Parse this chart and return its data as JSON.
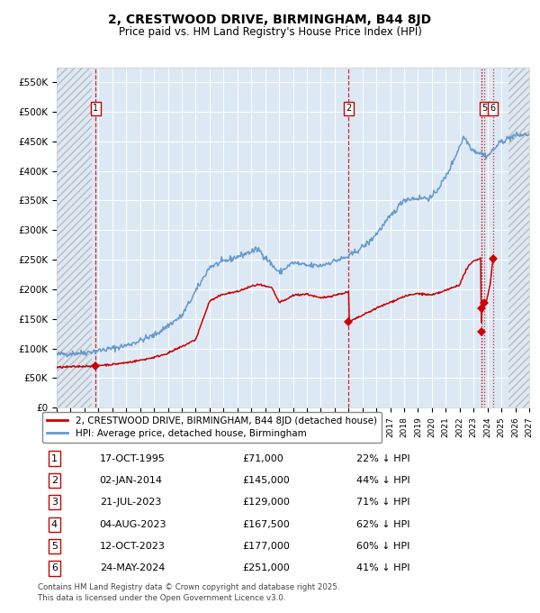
{
  "title": "2, CRESTWOOD DRIVE, BIRMINGHAM, B44 8JD",
  "subtitle": "Price paid vs. HM Land Registry's House Price Index (HPI)",
  "xlim": [
    1993.0,
    2027.0
  ],
  "ylim": [
    0,
    575000
  ],
  "yticks": [
    0,
    50000,
    100000,
    150000,
    200000,
    250000,
    300000,
    350000,
    400000,
    450000,
    500000,
    550000
  ],
  "ytick_labels": [
    "£0",
    "£50K",
    "£100K",
    "£150K",
    "£200K",
    "£250K",
    "£300K",
    "£350K",
    "£400K",
    "£450K",
    "£500K",
    "£550K"
  ],
  "xticks": [
    1993,
    1994,
    1995,
    1996,
    1997,
    1998,
    1999,
    2000,
    2001,
    2002,
    2003,
    2004,
    2005,
    2006,
    2007,
    2008,
    2009,
    2010,
    2011,
    2012,
    2013,
    2014,
    2015,
    2016,
    2017,
    2018,
    2019,
    2020,
    2021,
    2022,
    2023,
    2024,
    2025,
    2026,
    2027
  ],
  "background_color": "#dce9f5",
  "grid_color": "#ffffff",
  "red_line_color": "#cc0000",
  "blue_line_color": "#6699cc",
  "vline_color": "#cc0000",
  "hatch_left_end": 1995.5,
  "hatch_right_start": 2025.5,
  "purchases": [
    {
      "num": 1,
      "year": 1995.79,
      "price": 71000,
      "vline": "dashed",
      "show_label": true
    },
    {
      "num": 2,
      "year": 2014.01,
      "price": 145000,
      "vline": "dashed",
      "show_label": true
    },
    {
      "num": 3,
      "year": 2023.55,
      "price": 129000,
      "vline": "dotted",
      "show_label": false
    },
    {
      "num": 4,
      "year": 2023.59,
      "price": 167500,
      "vline": "dotted",
      "show_label": false
    },
    {
      "num": 5,
      "year": 2023.78,
      "price": 177000,
      "vline": "dotted",
      "show_label": true
    },
    {
      "num": 6,
      "year": 2024.39,
      "price": 251000,
      "vline": "dotted",
      "show_label": true
    }
  ],
  "legend_red_label": "2, CRESTWOOD DRIVE, BIRMINGHAM, B44 8JD (detached house)",
  "legend_blue_label": "HPI: Average price, detached house, Birmingham",
  "table_rows": [
    {
      "num": "1",
      "date": "17-OCT-1995",
      "price": "£71,000",
      "pct": "22% ↓ HPI"
    },
    {
      "num": "2",
      "date": "02-JAN-2014",
      "price": "£145,000",
      "pct": "44% ↓ HPI"
    },
    {
      "num": "3",
      "date": "21-JUL-2023",
      "price": "£129,000",
      "pct": "71% ↓ HPI"
    },
    {
      "num": "4",
      "date": "04-AUG-2023",
      "price": "£167,500",
      "pct": "62% ↓ HPI"
    },
    {
      "num": "5",
      "date": "12-OCT-2023",
      "price": "£177,000",
      "pct": "60% ↓ HPI"
    },
    {
      "num": "6",
      "date": "24-MAY-2024",
      "price": "£251,000",
      "pct": "41% ↓ HPI"
    }
  ],
  "footnote": "Contains HM Land Registry data © Crown copyright and database right 2025.\nThis data is licensed under the Open Government Licence v3.0.",
  "hpi_anchors": [
    [
      1993.0,
      90000
    ],
    [
      1995.0,
      93000
    ],
    [
      1997.0,
      100000
    ],
    [
      1998.0,
      105000
    ],
    [
      2000.0,
      122000
    ],
    [
      2002.0,
      155000
    ],
    [
      2004.0,
      238000
    ],
    [
      2007.5,
      268000
    ],
    [
      2009.0,
      228000
    ],
    [
      2010.0,
      245000
    ],
    [
      2011.0,
      240000
    ],
    [
      2012.0,
      240000
    ],
    [
      2013.0,
      248000
    ],
    [
      2014.0,
      255000
    ],
    [
      2015.5,
      280000
    ],
    [
      2016.5,
      308000
    ],
    [
      2018.0,
      352000
    ],
    [
      2019.0,
      354000
    ],
    [
      2020.0,
      355000
    ],
    [
      2021.0,
      390000
    ],
    [
      2021.5,
      415000
    ],
    [
      2022.3,
      458000
    ],
    [
      2022.8,
      440000
    ],
    [
      2023.0,
      435000
    ],
    [
      2023.5,
      430000
    ],
    [
      2024.0,
      425000
    ],
    [
      2024.5,
      438000
    ],
    [
      2025.0,
      450000
    ],
    [
      2026.0,
      460000
    ],
    [
      2027.0,
      462000
    ]
  ],
  "red_anchors": [
    [
      1993.0,
      68000
    ],
    [
      1995.0,
      70000
    ],
    [
      1995.79,
      71000
    ],
    [
      1996.0,
      71500
    ],
    [
      1997.0,
      73000
    ],
    [
      1998.0,
      76000
    ],
    [
      1999.0,
      80000
    ],
    [
      2000.0,
      85000
    ],
    [
      2001.0,
      92000
    ],
    [
      2002.0,
      103000
    ],
    [
      2003.0,
      115000
    ],
    [
      2004.0,
      180000
    ],
    [
      2005.0,
      192000
    ],
    [
      2006.0,
      196000
    ],
    [
      2007.0,
      205000
    ],
    [
      2007.5,
      208000
    ],
    [
      2008.5,
      202000
    ],
    [
      2009.0,
      178000
    ],
    [
      2009.5,
      182000
    ],
    [
      2010.0,
      190000
    ],
    [
      2011.0,
      192000
    ],
    [
      2012.0,
      185000
    ],
    [
      2013.0,
      190000
    ],
    [
      2013.9,
      195000
    ],
    [
      2014.01,
      195000
    ],
    [
      2014.02,
      145000
    ],
    [
      2014.5,
      150000
    ],
    [
      2015.0,
      156000
    ],
    [
      2016.0,
      168000
    ],
    [
      2017.0,
      178000
    ],
    [
      2018.0,
      188000
    ],
    [
      2019.0,
      193000
    ],
    [
      2020.0,
      190000
    ],
    [
      2021.0,
      198000
    ],
    [
      2022.0,
      208000
    ],
    [
      2022.5,
      235000
    ],
    [
      2023.0,
      248000
    ],
    [
      2023.4,
      252000
    ],
    [
      2023.54,
      252000
    ],
    [
      2023.55,
      129000
    ],
    [
      2023.57,
      167500
    ],
    [
      2023.65,
      163000
    ],
    [
      2023.78,
      177000
    ],
    [
      2023.85,
      172000
    ],
    [
      2024.2,
      210000
    ],
    [
      2024.39,
      251000
    ],
    [
      2024.45,
      245000
    ]
  ]
}
